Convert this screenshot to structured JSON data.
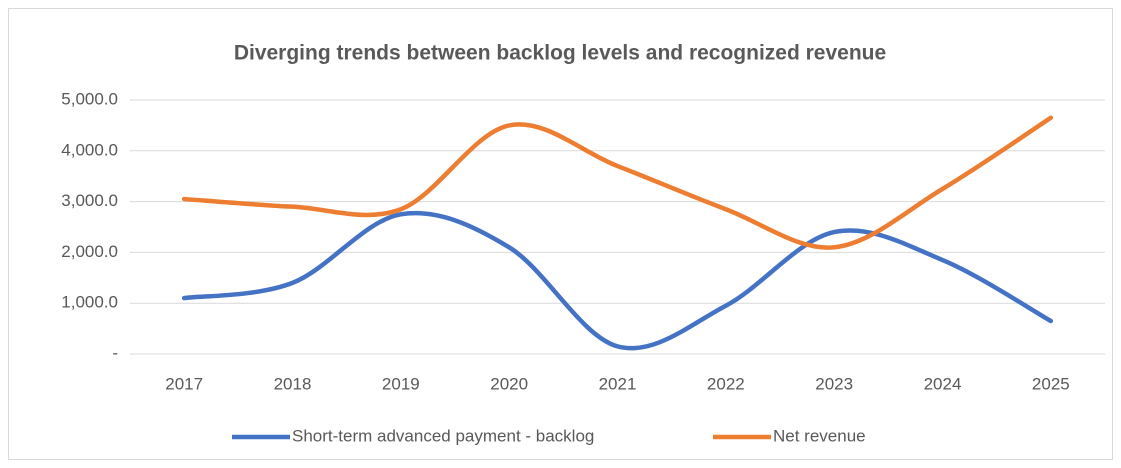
{
  "chart_data": {
    "type": "line",
    "title": "Diverging trends between backlog levels and recognized revenue",
    "categories": [
      "2017",
      "2018",
      "2019",
      "2020",
      "2021",
      "2022",
      "2023",
      "2024",
      "2025"
    ],
    "series": [
      {
        "name": "Short-term advanced payment - backlog",
        "color": "#4472c4",
        "values": [
          1100,
          1400,
          2750,
          2100,
          150,
          950,
          2400,
          1850,
          650
        ]
      },
      {
        "name": "Net revenue",
        "color": "#ed7d31",
        "values": [
          3050,
          2900,
          2850,
          4500,
          3700,
          2850,
          2100,
          3250,
          4650
        ]
      }
    ],
    "ylim": [
      0,
      5000
    ],
    "yticks": [
      {
        "value": 0,
        "label": "-"
      },
      {
        "value": 1000,
        "label": "1,000.0"
      },
      {
        "value": 2000,
        "label": "2,000.0"
      },
      {
        "value": 3000,
        "label": "3,000.0"
      },
      {
        "value": 4000,
        "label": "4,000.0"
      },
      {
        "value": 5000,
        "label": "5,000.0"
      }
    ],
    "grid": true,
    "smooth": true,
    "legend": "bottom"
  }
}
